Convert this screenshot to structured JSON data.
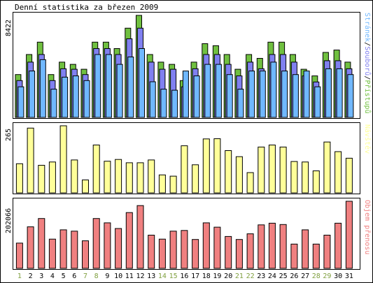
{
  "chart_data": {
    "type": "bar",
    "title": "Denní statistika za březen 2009",
    "categories": [
      "1",
      "2",
      "3",
      "4",
      "5",
      "6",
      "7",
      "8",
      "9",
      "10",
      "11",
      "12",
      "13",
      "14",
      "15",
      "16",
      "17",
      "18",
      "19",
      "20",
      "21",
      "22",
      "23",
      "24",
      "25",
      "26",
      "27",
      "28",
      "29",
      "30",
      "31"
    ],
    "weekend_days": [
      "1",
      "7",
      "8",
      "14",
      "15",
      "21",
      "22",
      "28",
      "29"
    ],
    "colors": {
      "pristupu": "#70c040",
      "souboru": "#8080f0",
      "stranek": "#70b8ff",
      "navstev": "#ffff99",
      "objem": "#f08080",
      "weekend_label": "#80a040",
      "weekday_label": "#000000",
      "frame": "#000000"
    },
    "panels": [
      {
        "id": "traffic",
        "max_label": "8422",
        "ylim": [
          0,
          8422
        ],
        "side_label": {
          "parts": [
            {
              "text": "Stránek",
              "color": "#70b8ff"
            },
            {
              "text": "/",
              "color": "#000000"
            },
            {
              "text": "Souborů",
              "color": "#8080f0"
            },
            {
              "text": "/",
              "color": "#000000"
            },
            {
              "text": "Přístupů",
              "color": "#70c040"
            }
          ]
        },
        "series": [
          {
            "name": "Přístupů",
            "color": "#70c040",
            "values": [
              3534,
              5191,
              6210,
              3534,
              4560,
              4381,
              3977,
              6210,
              6210,
              5682,
              7367,
              8422,
              5191,
              4560,
              4381,
              3042,
              4560,
              6087,
              5919,
              5191,
              3977,
              5191,
              4875,
              6210,
              6210,
              5191,
              3977,
              3429,
              5365,
              5561,
              4560
            ]
          },
          {
            "name": "Souborů",
            "color": "#8080f0",
            "values": [
              3042,
              4560,
              5191,
              3042,
              4014,
              3977,
              3534,
              5682,
              5682,
              5191,
              6489,
              7367,
              4560,
              3977,
              3977,
              2527,
              4014,
              5191,
              5191,
              4381,
              3429,
              4560,
              4014,
              5191,
              5191,
              4560,
              3429,
              2927,
              4679,
              4679,
              4014
            ]
          },
          {
            "name": "Stránek",
            "color": "#70b8ff",
            "values": [
              2527,
              3828,
              4765,
              2331,
              3323,
              3429,
              3042,
              5191,
              5191,
              4381,
              4989,
              5682,
              2941,
              2331,
              2245,
              3828,
              3429,
              4381,
              4381,
              3534,
              2331,
              3828,
              3828,
              4560,
              3828,
              3534,
              3828,
              2527,
              4014,
              4014,
              3534
            ]
          }
        ]
      },
      {
        "id": "visits",
        "max_label": "265",
        "ylim": [
          0,
          265
        ],
        "side_label": {
          "parts": [
            {
              "text": "Návštěv",
              "color": "#ffff99"
            }
          ]
        },
        "series": [
          {
            "name": "Návštěv",
            "color": "#ffff99",
            "values": [
              115,
              256,
              109,
              122,
              265,
              130,
              51,
              189,
              125,
              132,
              119,
              119,
              130,
              71,
              66,
              186,
              111,
              213,
              214,
              167,
              143,
              80,
              181,
              189,
              181,
              124,
              122,
              87,
              201,
              163,
              137
            ]
          }
        ]
      },
      {
        "id": "volume",
        "max_label": "202066",
        "ylim": [
          0,
          202066
        ],
        "side_label": {
          "parts": [
            {
              "text": "Objem přenosu",
              "color": "#f08080"
            }
          ]
        },
        "series": [
          {
            "name": "Objem přenosu",
            "color": "#f08080",
            "values": [
              76000,
              125000,
              150000,
              88000,
              116000,
              112000,
              83000,
              150000,
              137000,
              120000,
              168000,
              189000,
              100000,
              88000,
              112000,
              114000,
              87000,
              137000,
              124000,
              96000,
              87000,
              104000,
              131000,
              136000,
              132000,
              73000,
              116000,
              73000,
              100000,
              136000,
              202066
            ]
          }
        ]
      }
    ]
  }
}
